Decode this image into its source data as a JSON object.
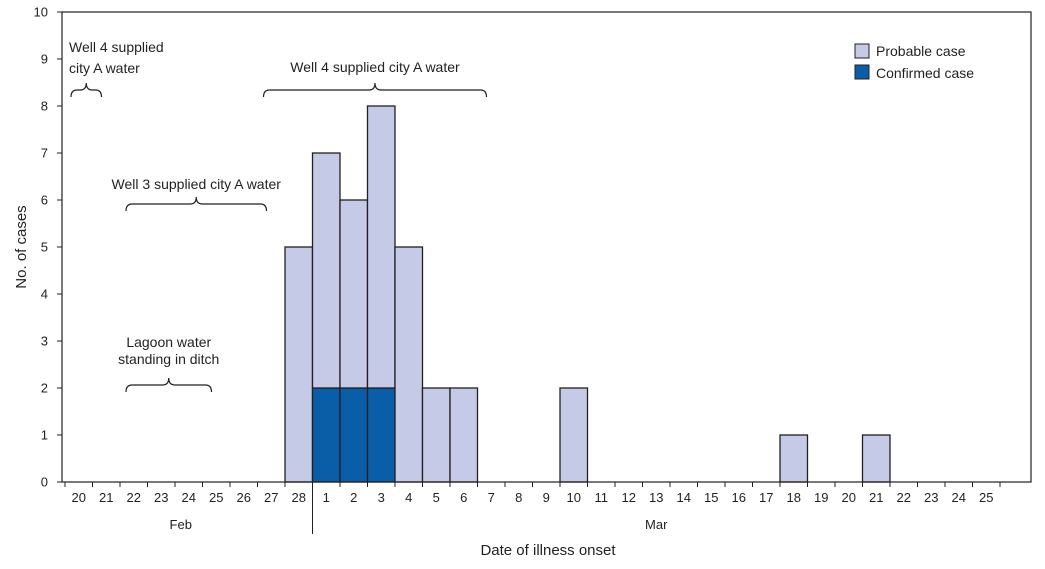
{
  "chart_data": {
    "type": "bar",
    "stacked": true,
    "xlabel": "Date of illness onset",
    "ylabel": "No. of cases",
    "ylim": [
      0,
      10
    ],
    "yticks": [
      "0",
      "1",
      "2",
      "3",
      "4",
      "5",
      "6",
      "7",
      "8",
      "9",
      "10"
    ],
    "categories": [
      "20",
      "21",
      "22",
      "23",
      "24",
      "25",
      "26",
      "27",
      "28",
      "1",
      "2",
      "3",
      "4",
      "5",
      "6",
      "7",
      "8",
      "9",
      "10",
      "11",
      "12",
      "13",
      "14",
      "15",
      "16",
      "17",
      "18",
      "19",
      "20",
      "21",
      "22",
      "23",
      "24",
      "25"
    ],
    "months": [
      {
        "label": "Feb",
        "start_index": 0,
        "end_index": 8
      },
      {
        "label": "Mar",
        "start_index": 9,
        "end_index": 33
      }
    ],
    "series": [
      {
        "name": "Confirmed case",
        "color": "#0a5ea8",
        "values": [
          0,
          0,
          0,
          0,
          0,
          0,
          0,
          0,
          0,
          2,
          2,
          2,
          0,
          0,
          0,
          0,
          0,
          0,
          0,
          0,
          0,
          0,
          0,
          0,
          0,
          0,
          0,
          0,
          0,
          0,
          0,
          0,
          0,
          0
        ]
      },
      {
        "name": "Probable case",
        "color": "#c5cbe6",
        "values": [
          0,
          0,
          0,
          0,
          0,
          0,
          0,
          0,
          5,
          5,
          4,
          6,
          5,
          2,
          2,
          0,
          0,
          0,
          2,
          0,
          0,
          0,
          0,
          0,
          0,
          0,
          1,
          0,
          0,
          1,
          0,
          0,
          0,
          0
        ]
      }
    ],
    "legend_position": "top-right",
    "annotations": [
      {
        "id": "well4-early",
        "lines": [
          "Well 4 supplied",
          "city A water"
        ],
        "from_index": 0,
        "to_index": 1
      },
      {
        "id": "well4-late",
        "lines": [
          "Well 4 supplied city A water"
        ],
        "from_index": 7,
        "to_index": 15
      },
      {
        "id": "well3",
        "lines": [
          "Well 3 supplied city A water"
        ],
        "from_index": 2,
        "to_index": 7
      },
      {
        "id": "lagoon",
        "lines": [
          "Lagoon water",
          "standing in ditch"
        ],
        "from_index": 2,
        "to_index": 5
      }
    ]
  }
}
